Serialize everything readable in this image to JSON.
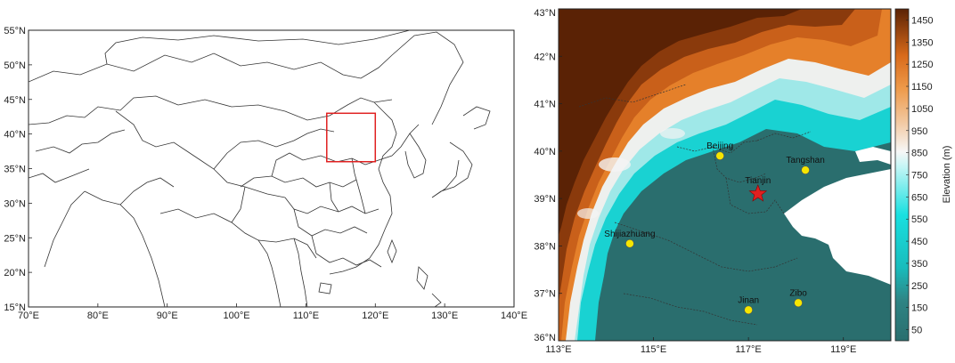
{
  "left_map": {
    "lat_labels": [
      "55°N",
      "50°N",
      "45°N",
      "40°N",
      "35°N",
      "30°N",
      "25°N",
      "20°N",
      "15°N"
    ],
    "lat_values": [
      55,
      50,
      45,
      40,
      35,
      30,
      25,
      20,
      15
    ],
    "lon_labels": [
      "70°E",
      "80°E",
      "90°E",
      "100°E",
      "110°E",
      "120°E",
      "130°E",
      "140°E"
    ],
    "lon_values": [
      70,
      80,
      90,
      100,
      110,
      120,
      130,
      140
    ],
    "extent": {
      "lon": [
        70,
        140
      ],
      "lat": [
        15,
        55
      ]
    },
    "study_box": {
      "lon": [
        113,
        120
      ],
      "lat": [
        36,
        43
      ]
    },
    "study_box_color": "#e02020"
  },
  "right_map": {
    "lat_labels": [
      "43°N",
      "42°N",
      "41°N",
      "40°N",
      "39°N",
      "38°N",
      "37°N",
      "36°N"
    ],
    "lat_values": [
      43,
      42,
      41,
      40,
      39,
      38,
      37,
      36
    ],
    "lon_labels": [
      "113°E",
      "115°E",
      "117°E",
      "119°E"
    ],
    "lon_values": [
      113,
      115,
      117,
      119
    ],
    "extent": {
      "lon": [
        113,
        120
      ],
      "lat": [
        36,
        43
      ]
    },
    "cities": [
      {
        "name": "Beijing",
        "lon": 116.4,
        "lat": 39.9,
        "marker": "circle"
      },
      {
        "name": "Tangshan",
        "lon": 118.2,
        "lat": 39.6,
        "marker": "circle"
      },
      {
        "name": "Tianjin",
        "lon": 117.2,
        "lat": 39.1,
        "marker": "star"
      },
      {
        "name": "Shijiazhuang",
        "lon": 114.5,
        "lat": 38.05,
        "marker": "circle"
      },
      {
        "name": "Jinan",
        "lon": 117.0,
        "lat": 36.65,
        "marker": "circle"
      },
      {
        "name": "Zibo",
        "lon": 118.05,
        "lat": 36.8,
        "marker": "circle"
      }
    ],
    "city_marker_color": "#f5e600",
    "star_color": "#e02020"
  },
  "colorbar": {
    "title": "Elevation (m)",
    "ticks": [
      "1450",
      "1350",
      "1250",
      "1150",
      "1050",
      "950",
      "850",
      "750",
      "650",
      "550",
      "450",
      "350",
      "250",
      "150",
      "50"
    ],
    "tick_values": [
      1450,
      1350,
      1250,
      1150,
      1050,
      950,
      850,
      750,
      650,
      550,
      450,
      350,
      250,
      150,
      50
    ],
    "range": [
      0,
      1500
    ],
    "colors": {
      "low": "#2a6e6e",
      "cyan": "#19d6d6",
      "white": "#f7f7f7",
      "orange": "#e8781e",
      "dark": "#5a2205"
    }
  }
}
